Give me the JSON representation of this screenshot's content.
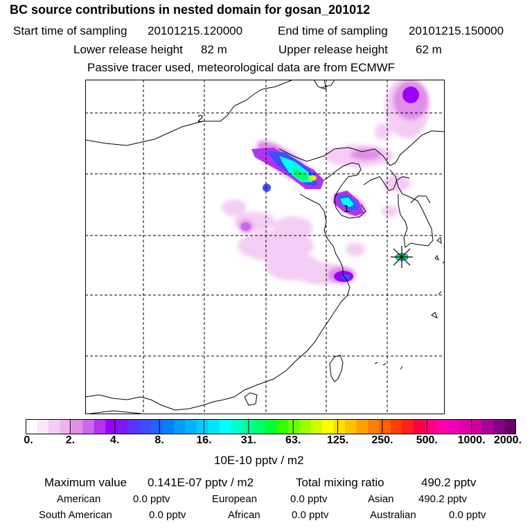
{
  "header": {
    "title": "BC  source contributions in nested domain for gosan_201012",
    "start_label": "Start time of sampling",
    "start_value": "20101215.120000",
    "end_label": "End time of sampling",
    "end_value": "20101215.150000",
    "lower_label": "Lower release height",
    "lower_value": "82 m",
    "upper_label": "Upper release height",
    "upper_value": "62 m",
    "tracer_note": "Passive tracer used, meteorological data are from ECMWF"
  },
  "map": {
    "point_labels": [
      "2",
      "1"
    ],
    "receptor": "gosan"
  },
  "colorbar": {
    "ticks": [
      "0.",
      "2.",
      "4.",
      "8.",
      "16.",
      "31.",
      "63.",
      "125.",
      "250.",
      "500.",
      "1000.",
      "2000."
    ],
    "colors": [
      "#ffffff",
      "#fbe6fb",
      "#f5ccf5",
      "#efb2ef",
      "#e08ce8",
      "#cc66ee",
      "#b133ee",
      "#9900ff",
      "#7a1aff",
      "#5b33ff",
      "#3d4dff",
      "#1f66ff",
      "#0080ff",
      "#0099ff",
      "#00b3ff",
      "#00ccff",
      "#00e5ff",
      "#00ffff",
      "#00ffcc",
      "#00ff99",
      "#00ff66",
      "#00ff33",
      "#33ff00",
      "#66ff00",
      "#99ff00",
      "#ccff00",
      "#ffff00",
      "#ffe000",
      "#ffc000",
      "#ffa000",
      "#ff8000",
      "#ff6000",
      "#ff4000",
      "#ff2020",
      "#ff0044",
      "#ff0080",
      "#ff00aa",
      "#ee00bb",
      "#dd00aa",
      "#cc0099",
      "#aa0099",
      "#880088",
      "#660066"
    ],
    "unit": "10E-10 pptv / m2"
  },
  "stats": {
    "max_label": "Maximum value",
    "max_value": "0.141E-07 pptv / m2",
    "total_label": "Total mixing ratio",
    "total_value": "490.2 pptv",
    "american_label": "American",
    "american_value": "0.0 pptv",
    "european_label": "European",
    "european_value": "0.0 pptv",
    "asian_label": "Asian",
    "asian_value": "490.2 pptv",
    "south_american_label": "South American",
    "south_american_value": "0.0 pptv",
    "african_label": "African",
    "african_value": "0.0 pptv",
    "australian_label": "Australian",
    "australian_value": "0.0 pptv"
  }
}
